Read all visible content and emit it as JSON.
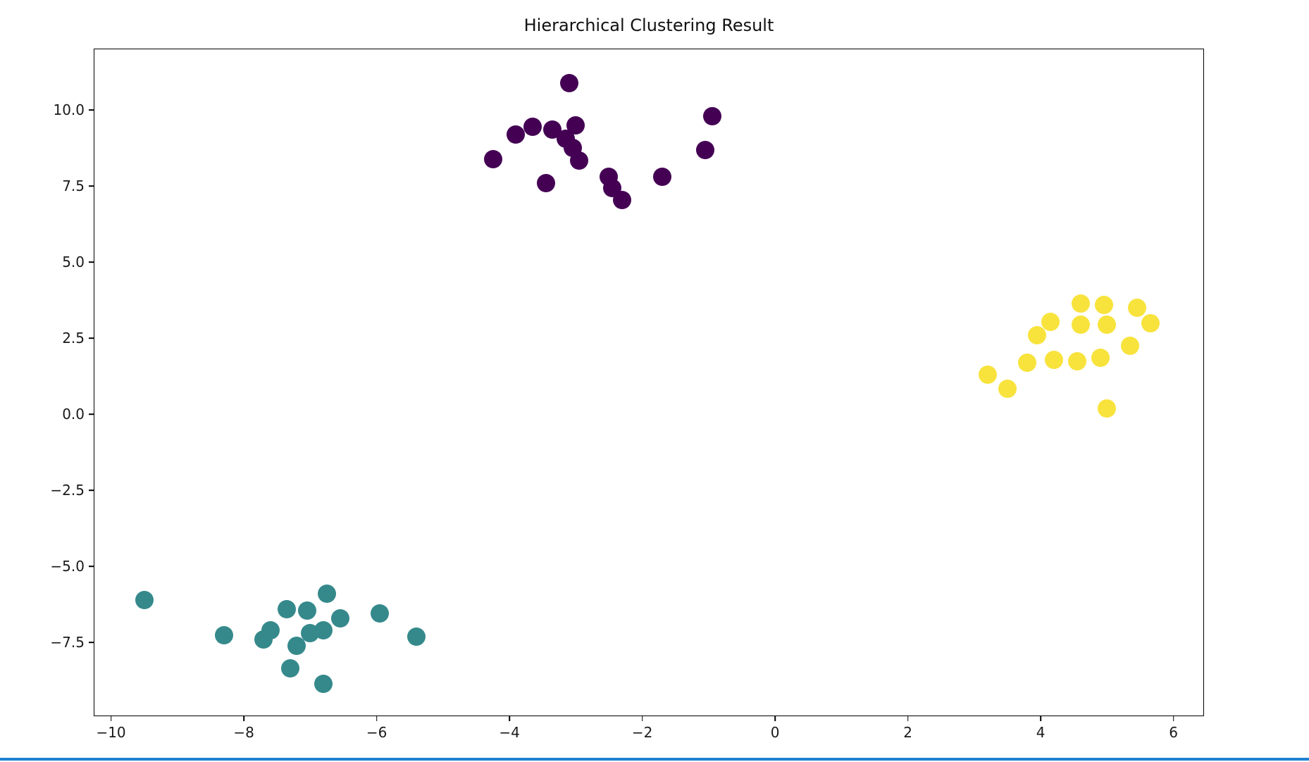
{
  "page": {
    "background": "#ffffff",
    "bottom_divider_color": "#1e82d2"
  },
  "chart_data": {
    "type": "scatter",
    "title": "Hierarchical Clustering Result",
    "xlabel": "",
    "ylabel": "",
    "xlim": [
      -10.25,
      6.45
    ],
    "ylim": [
      -9.9,
      12.0
    ],
    "grid": false,
    "legend": "none",
    "marker_size_px": 26,
    "xticks": [
      {
        "value": -10,
        "label": "−10"
      },
      {
        "value": -8,
        "label": "−8"
      },
      {
        "value": -6,
        "label": "−6"
      },
      {
        "value": -4,
        "label": "−4"
      },
      {
        "value": -2,
        "label": "−2"
      },
      {
        "value": 0,
        "label": "0"
      },
      {
        "value": 2,
        "label": "2"
      },
      {
        "value": 4,
        "label": "4"
      },
      {
        "value": 6,
        "label": "6"
      }
    ],
    "yticks": [
      {
        "value": 10.0,
        "label": "10.0"
      },
      {
        "value": 7.5,
        "label": "7.5"
      },
      {
        "value": 5.0,
        "label": "5.0"
      },
      {
        "value": 2.5,
        "label": "2.5"
      },
      {
        "value": 0.0,
        "label": "0.0"
      },
      {
        "value": -2.5,
        "label": "−2.5"
      },
      {
        "value": -5.0,
        "label": "−5.0"
      },
      {
        "value": -7.5,
        "label": "−7.5"
      }
    ],
    "series": [
      {
        "name": "cluster-0-purple",
        "color": "#440154",
        "points": [
          [
            -3.1,
            10.9
          ],
          [
            -0.95,
            9.8
          ],
          [
            -3.65,
            9.45
          ],
          [
            -3.35,
            9.35
          ],
          [
            -3.0,
            9.5
          ],
          [
            -3.9,
            9.2
          ],
          [
            -3.15,
            9.05
          ],
          [
            -3.05,
            8.75
          ],
          [
            -1.05,
            8.7
          ],
          [
            -4.25,
            8.4
          ],
          [
            -2.95,
            8.35
          ],
          [
            -2.5,
            7.8
          ],
          [
            -1.7,
            7.8
          ],
          [
            -3.45,
            7.6
          ],
          [
            -2.45,
            7.45
          ],
          [
            -2.3,
            7.05
          ]
        ]
      },
      {
        "name": "cluster-1-teal",
        "color": "#35898b",
        "points": [
          [
            -9.5,
            -6.1
          ],
          [
            -6.75,
            -5.9
          ],
          [
            -7.35,
            -6.4
          ],
          [
            -7.05,
            -6.45
          ],
          [
            -6.55,
            -6.7
          ],
          [
            -5.95,
            -6.55
          ],
          [
            -7.6,
            -7.1
          ],
          [
            -6.8,
            -7.1
          ],
          [
            -7.0,
            -7.2
          ],
          [
            -8.3,
            -7.25
          ],
          [
            -7.7,
            -7.4
          ],
          [
            -7.2,
            -7.6
          ],
          [
            -5.4,
            -7.3
          ],
          [
            -7.3,
            -8.35
          ],
          [
            -6.8,
            -8.85
          ]
        ]
      },
      {
        "name": "cluster-2-yellow",
        "color": "#f8e33c",
        "points": [
          [
            4.6,
            3.65
          ],
          [
            4.95,
            3.6
          ],
          [
            5.45,
            3.5
          ],
          [
            4.15,
            3.05
          ],
          [
            4.6,
            2.95
          ],
          [
            5.0,
            2.95
          ],
          [
            5.65,
            3.0
          ],
          [
            3.95,
            2.6
          ],
          [
            5.35,
            2.25
          ],
          [
            4.2,
            1.8
          ],
          [
            4.55,
            1.75
          ],
          [
            4.9,
            1.85
          ],
          [
            3.8,
            1.7
          ],
          [
            3.2,
            1.3
          ],
          [
            3.5,
            0.85
          ],
          [
            5.0,
            0.2
          ]
        ]
      }
    ]
  }
}
